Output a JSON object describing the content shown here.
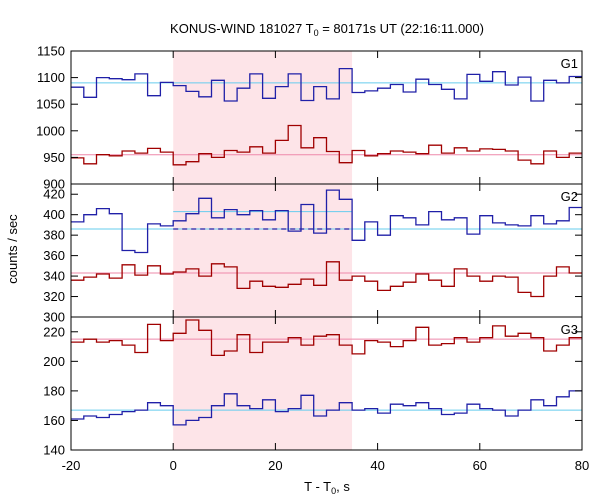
{
  "chart_data": {
    "type": "line",
    "title": "KONUS-WIND 181027 T",
    "title_sub": "0",
    "title_rest": " = 80171s UT (22:16:11.000)",
    "xlabel": "T - T",
    "xlabel_sub": "0",
    "xlabel_rest": ", s",
    "ylabel": "counts / sec",
    "xlim": [
      -20,
      80
    ],
    "x_ticks": [
      "-20",
      "0",
      "20",
      "40",
      "60",
      "80"
    ],
    "highlight_interval": [
      0,
      35
    ],
    "colors": {
      "blue": "#2020a8",
      "red": "#a00000",
      "light_blue": "#66ccee",
      "pink": "#ee88aa",
      "shade": "#fde4e8"
    },
    "x_edges": [
      -20,
      -17.5,
      -15,
      -12.5,
      -10,
      -7.5,
      -5,
      -2.5,
      0,
      2.5,
      5,
      7.5,
      10,
      12.5,
      15,
      17.5,
      20,
      22.5,
      25,
      27.5,
      30,
      32.5,
      35,
      37.5,
      40,
      42.5,
      45,
      47.5,
      50,
      52.5,
      55,
      57.5,
      60,
      62.5,
      65,
      67.5,
      70,
      72.5,
      75,
      77.5,
      80
    ],
    "panels": [
      {
        "label": "G1",
        "ylim": [
          900,
          1150
        ],
        "y_ticks": [
          900,
          950,
          1000,
          1050,
          1100,
          1150
        ],
        "series": [
          {
            "color": "blue",
            "values": [
              1082,
              1063,
              1100,
              1098,
              1096,
              1107,
              1066,
              1091,
              1085,
              1074,
              1064,
              1095,
              1056,
              1080,
              1107,
              1061,
              1083,
              1107,
              1057,
              1083,
              1060,
              1117,
              1072,
              1075,
              1080,
              1087,
              1073,
              1097,
              1087,
              1078,
              1060,
              1106,
              1093,
              1111,
              1086,
              1101,
              1056,
              1095,
              1090,
              1102
            ],
            "background": 1090,
            "background_color": "light_blue"
          },
          {
            "color": "red",
            "values": [
              949,
              938,
              955,
              953,
              962,
              958,
              967,
              960,
              936,
              942,
              957,
              950,
              963,
              960,
              970,
              958,
              982,
              1010,
              968,
              987,
              961,
              940,
              963,
              953,
              957,
              962,
              960,
              957,
              973,
              958,
              968,
              962,
              966,
              965,
              962,
              945,
              938,
              962,
              950,
              958
            ],
            "background": 955,
            "background_color": "pink"
          }
        ]
      },
      {
        "label": "G2",
        "ylim": [
          300,
          430
        ],
        "y_ticks": [
          300,
          320,
          340,
          360,
          380,
          400,
          420
        ],
        "series": [
          {
            "color": "blue",
            "values": [
              393,
              400,
              406,
              401,
              365,
              363,
              391,
              389,
              394,
              401,
              416,
              397,
              405,
              400,
              404,
              395,
              404,
              384,
              410,
              382,
              424,
              415,
              375,
              393,
              380,
              399,
              397,
              390,
              403,
              395,
              397,
              381,
              399,
              392,
              390,
              389,
              399,
              391,
              394,
              407
            ],
            "background": 386,
            "background_color": "light_blue"
          },
          {
            "color": "red",
            "values": [
              336,
              339,
              342,
              338,
              351,
              341,
              350,
              342,
              344,
              347,
              340,
              352,
              349,
              328,
              335,
              330,
              329,
              332,
              337,
              331,
              354,
              336,
              340,
              335,
              326,
              330,
              334,
              342,
              336,
              330,
              347,
              340,
              335,
              340,
              339,
              324,
              320,
              340,
              349,
              343
            ],
            "background": 343,
            "background_color": "pink"
          }
        ],
        "interval_line_blue": 403,
        "interval_line_dashed": 386
      },
      {
        "label": "G3",
        "ylim": [
          140,
          230
        ],
        "y_ticks": [
          140,
          160,
          180,
          200,
          220
        ],
        "series": [
          {
            "color": "red",
            "values": [
              213,
              215,
              213,
              214,
              211,
              206,
              225,
              214,
              219,
              228,
              221,
              204,
              207,
              218,
              206,
              213,
              213,
              216,
              211,
              217,
              218,
              211,
              205,
              214,
              213,
              210,
              214,
              223,
              211,
              212,
              216,
              213,
              216,
              224,
              217,
              219,
              216,
              207,
              211,
              216
            ],
            "background": 215,
            "background_color": "pink"
          },
          {
            "color": "blue",
            "values": [
              161,
              163,
              162,
              164,
              166,
              167,
              172,
              170,
              157,
              160,
              162,
              170,
              178,
              170,
              168,
              174,
              166,
              168,
              177,
              163,
              167,
              172,
              167,
              168,
              165,
              171,
              170,
              172,
              168,
              164,
              165,
              171,
              168,
              167,
              163,
              167,
              174,
              170,
              176,
              180
            ],
            "background": 167,
            "background_color": "light_blue"
          }
        ]
      }
    ]
  }
}
